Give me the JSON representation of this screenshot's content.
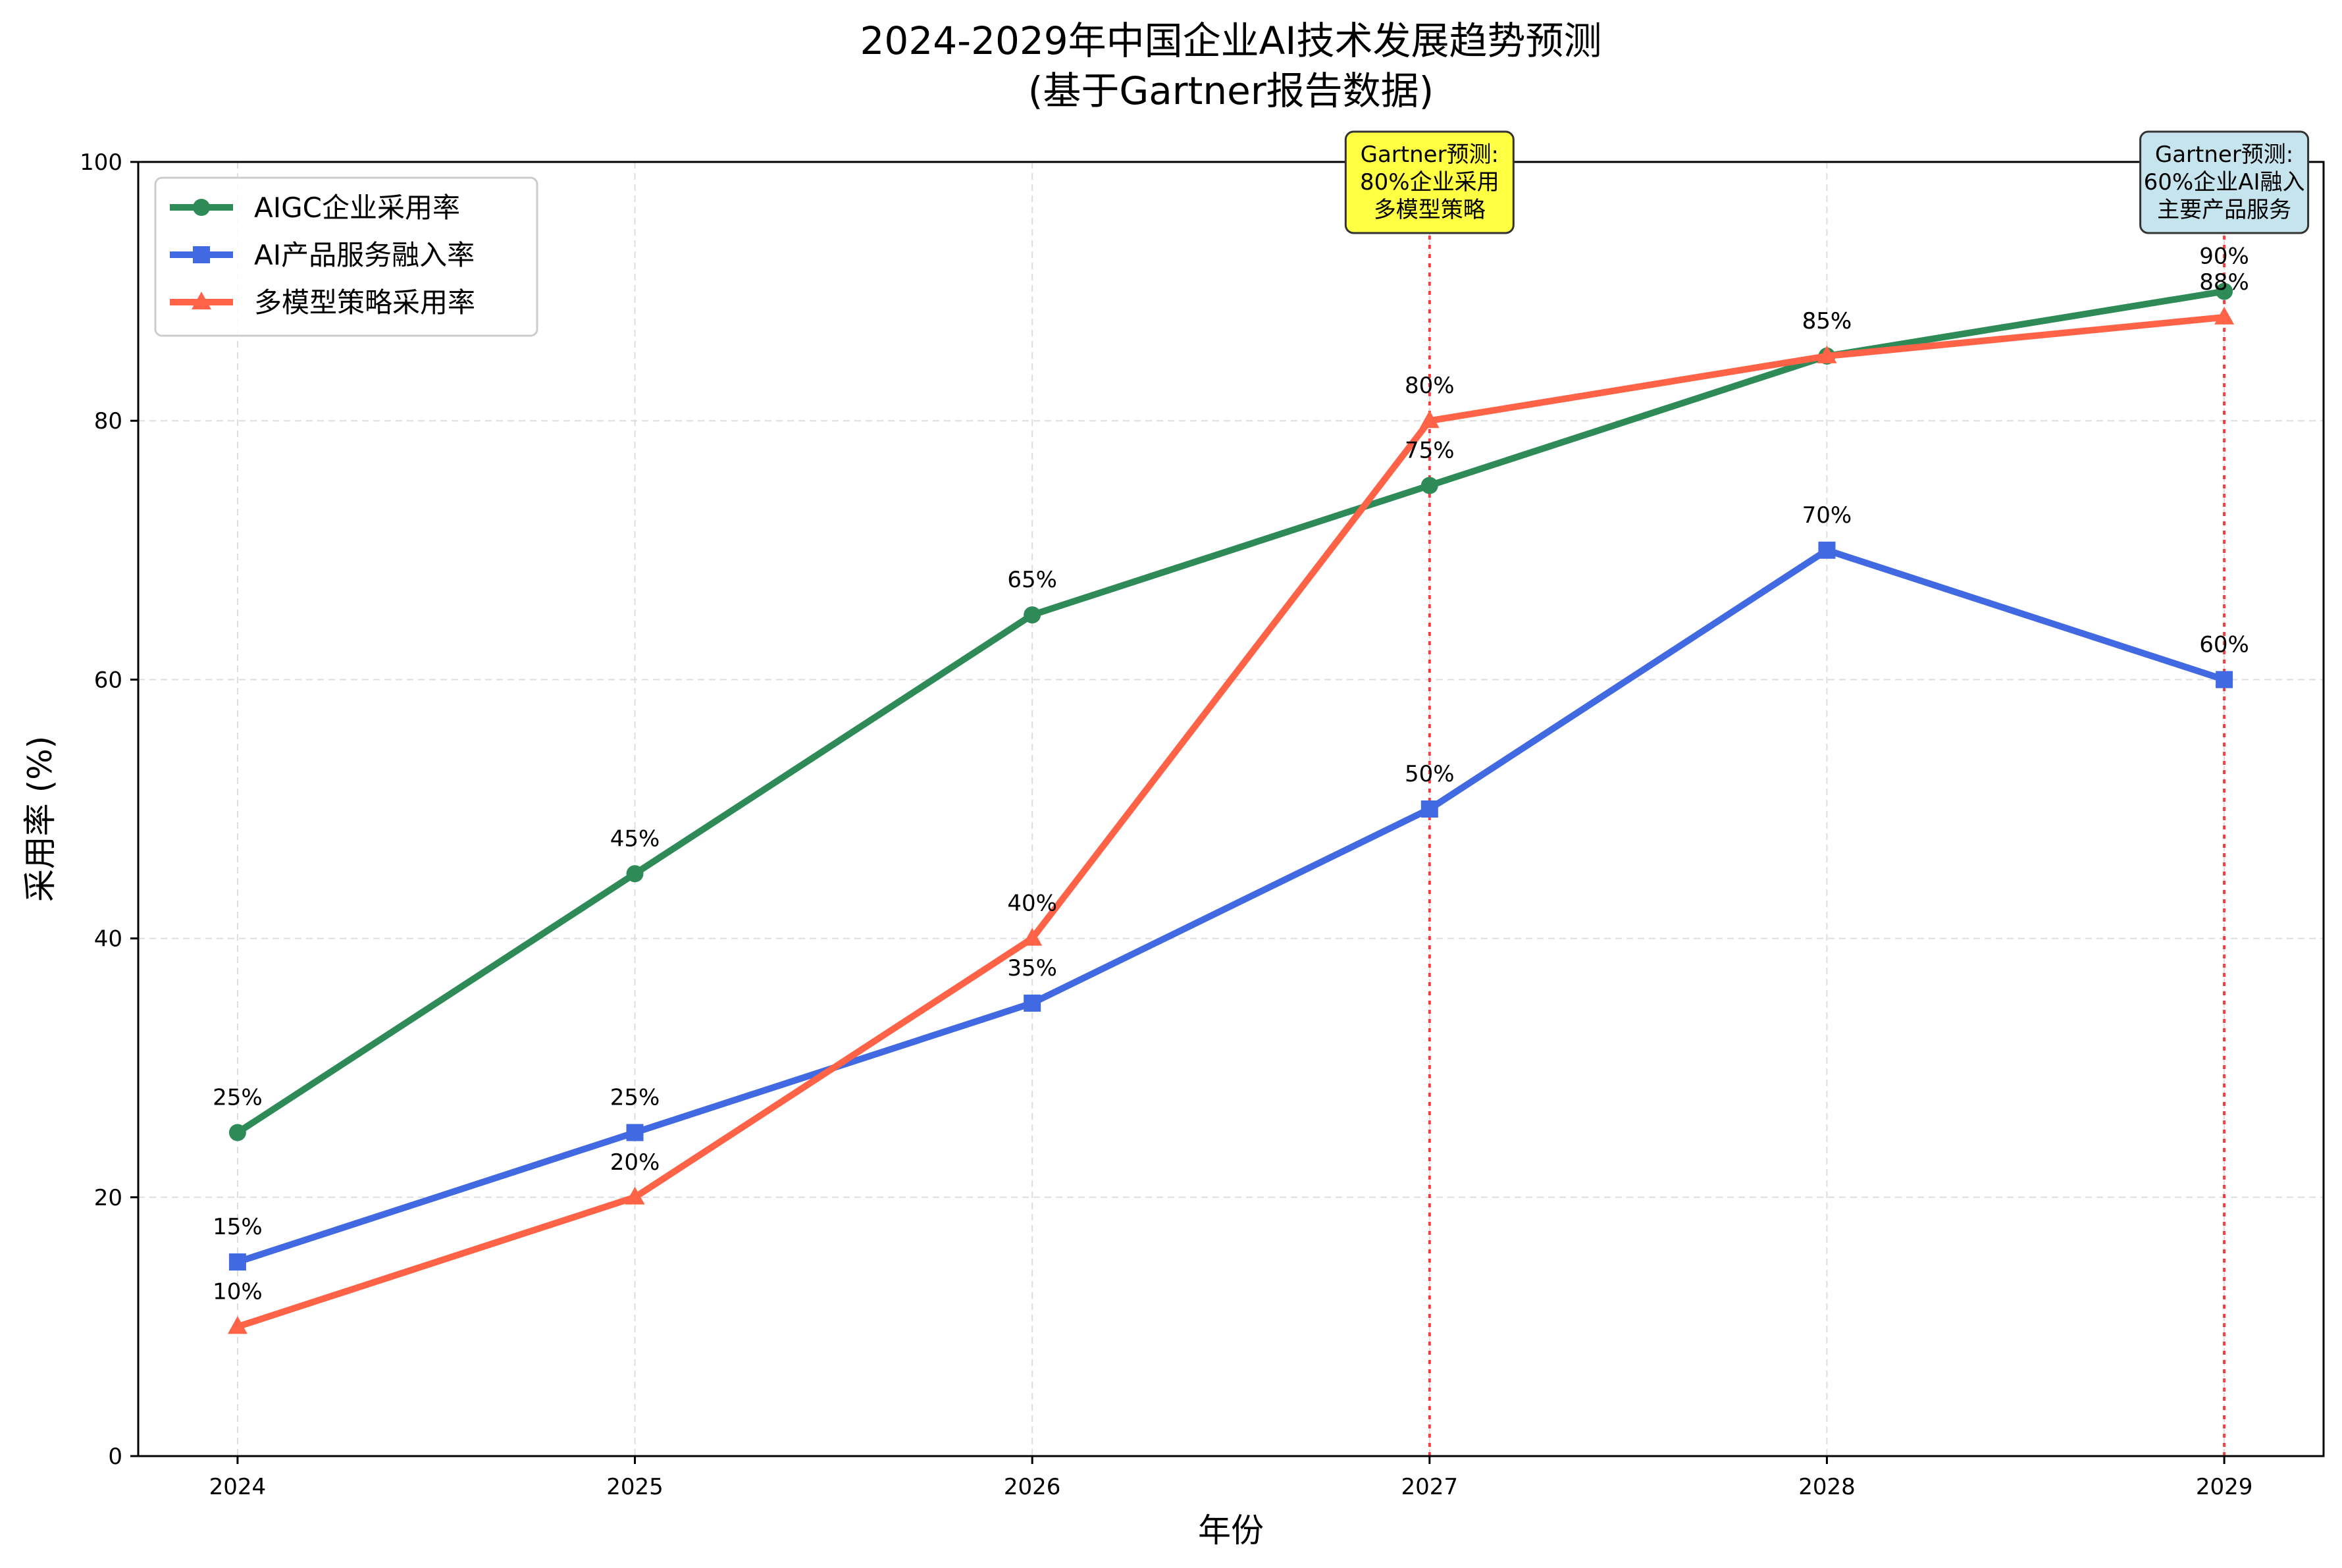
{
  "chart_data": {
    "type": "line",
    "title": "2024-2029年中国企业AI技术发展趋势预测",
    "subtitle": "(基于Gartner报告数据)",
    "xlabel": "年份",
    "ylabel": "采用率 (%)",
    "x": [
      "2024",
      "2025",
      "2026",
      "2027",
      "2028",
      "2029"
    ],
    "xlim": [
      2023.75,
      2029.25
    ],
    "ylim": [
      0,
      100
    ],
    "yticks": [
      0,
      20,
      40,
      60,
      80,
      100
    ],
    "grid": true,
    "legend_position": "top-left",
    "series": [
      {
        "name": "AIGC企业采用率",
        "values": [
          25,
          45,
          65,
          75,
          85,
          90
        ],
        "labels": [
          "25%",
          "45%",
          "65%",
          "75%",
          "85%",
          "90%"
        ],
        "color": "#2e8b57",
        "marker": "circle"
      },
      {
        "name": "AI产品服务融入率",
        "values": [
          15,
          25,
          35,
          50,
          70,
          60
        ],
        "labels": [
          "15%",
          "25%",
          "35%",
          "50%",
          "70%",
          "60%"
        ],
        "color": "#4169e1",
        "marker": "square"
      },
      {
        "name": "多模型策略采用率",
        "values": [
          10,
          20,
          40,
          80,
          85,
          88
        ],
        "labels": [
          "10%",
          "20%",
          "40%",
          "80%",
          "85%",
          "88%"
        ],
        "color": "#ff6347",
        "marker": "triangle"
      }
    ],
    "vlines": [
      {
        "x": 2027,
        "color": "#ff0000",
        "style": "dotted"
      },
      {
        "x": 2029,
        "color": "#ff0000",
        "style": "dotted"
      }
    ],
    "annotations": [
      {
        "x": 2027,
        "lines": [
          "Gartner预测:",
          "80%企业采用",
          "多模型策略"
        ],
        "bg": "#ffff44"
      },
      {
        "x": 2029,
        "lines": [
          "Gartner预测:",
          "60%企业AI融入",
          "主要产品服务"
        ],
        "bg": "#c5e4ee"
      }
    ]
  }
}
